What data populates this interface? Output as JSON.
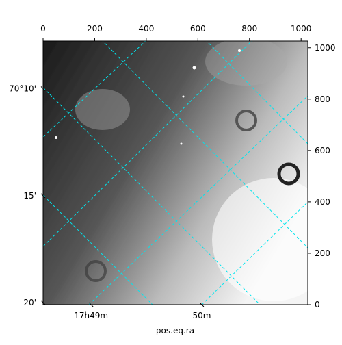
{
  "chart_data": {
    "type": "image",
    "xlabel": "pos.eq.ra",
    "xlim": [
      0,
      1026
    ],
    "ylim": [
      0,
      1026
    ],
    "xticks": [
      0,
      200,
      400,
      600,
      800,
      1000
    ],
    "yticks": [
      0,
      200,
      400,
      600,
      800,
      1000
    ],
    "world_yticks": [
      {
        "value": 841,
        "label": "70°10'"
      },
      {
        "value": 424,
        "label": "15'"
      },
      {
        "value": 8,
        "label": "20'"
      }
    ],
    "world_xticks": [
      {
        "value": 186,
        "label": "17h49m"
      },
      {
        "value": 615,
        "label": "50m"
      }
    ]
  }
}
